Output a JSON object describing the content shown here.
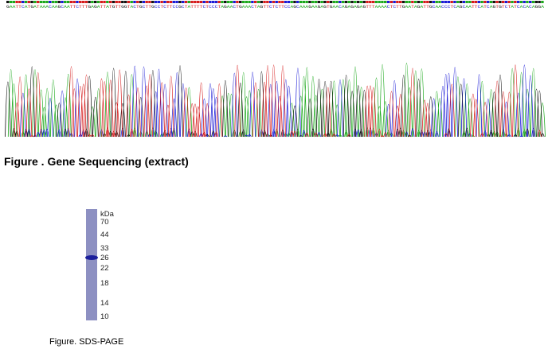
{
  "sequencing_figure": {
    "sequence": "GAATTCATGATAAACAAGCAATTCTTTGAGATTATGTTGGTACTGCTTGCCTCTTCCGCTATTTTCTCCCTAGAACTGAAACTAGTTCTCTTCCAGCAAAGAAGAGTGAACAGAGAGAGTTTAAAACTCTTGAATAGATTGCAACCCTCAGCAATTCATCAGTGTCTATCACACAGGA",
    "caption": "Figure . Gene Sequencing (extract)"
  },
  "sds_page_figure": {
    "unit_label": "kDa",
    "markers": [
      "70",
      "44",
      "33",
      "26",
      "22",
      "18",
      "14",
      "10"
    ],
    "caption": "Figure. SDS-PAGE"
  }
}
